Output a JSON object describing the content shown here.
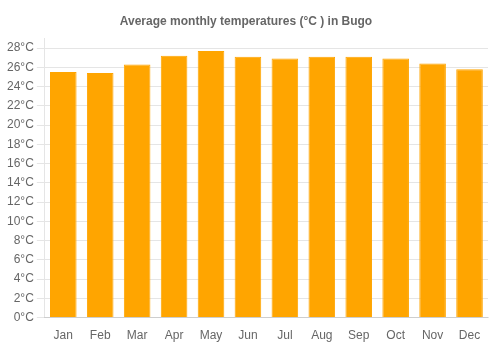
{
  "chart_data": {
    "type": "bar",
    "title": "Average monthly temperatures (°C ) in Bugo",
    "categories": [
      "Jan",
      "Feb",
      "Mar",
      "Apr",
      "May",
      "Jun",
      "Jul",
      "Aug",
      "Sep",
      "Oct",
      "Nov",
      "Dec"
    ],
    "values": [
      25.5,
      25.4,
      26.3,
      27.2,
      27.7,
      27.1,
      26.9,
      27.1,
      27.1,
      26.9,
      26.4,
      25.8
    ],
    "color": "#FFA500",
    "ylim": [
      0,
      29
    ],
    "yticks": [
      {
        "value": 0,
        "label": "0°C"
      },
      {
        "value": 2,
        "label": "2°C"
      },
      {
        "value": 4,
        "label": "4°C"
      },
      {
        "value": 6,
        "label": "6°C"
      },
      {
        "value": 8,
        "label": "8°C"
      },
      {
        "value": 10,
        "label": "10°C"
      },
      {
        "value": 12,
        "label": "12°C"
      },
      {
        "value": 14,
        "label": "14°C"
      },
      {
        "value": 16,
        "label": "16°C"
      },
      {
        "value": 18,
        "label": "18°C"
      },
      {
        "value": 20,
        "label": "20°C"
      },
      {
        "value": 22,
        "label": "22°C"
      },
      {
        "value": 24,
        "label": "24°C"
      },
      {
        "value": 26,
        "label": "26°C"
      },
      {
        "value": 28,
        "label": "28°C"
      }
    ],
    "grid": true
  }
}
